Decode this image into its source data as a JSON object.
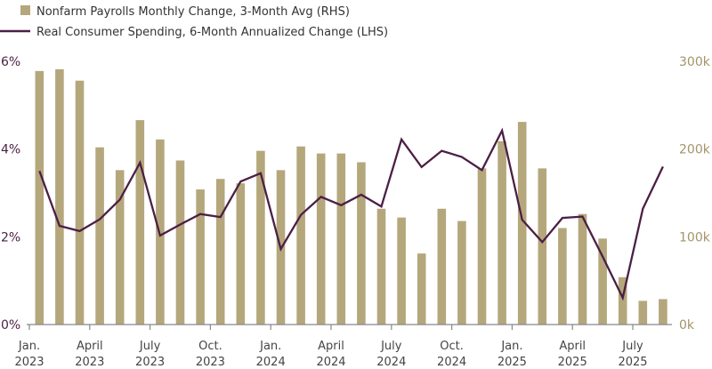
{
  "chart_data": {
    "type": "bar+line",
    "title": "",
    "legend": {
      "placement": "top-left",
      "entries": [
        {
          "label": "Nonfarm Payrolls Monthly Change, 3-Month Avg (RHS)",
          "marker": "square"
        },
        {
          "label": "Real Consumer Spending, 6-Month Annualized Change (LHS)",
          "marker": "line"
        }
      ]
    },
    "colors": {
      "bars": "#b5a77c",
      "line": "#4b1f45",
      "axis": "#888888",
      "left_ticks": "#4b1f45",
      "right_ticks": "#a3946a",
      "x_ticks": "#444444"
    },
    "months": [
      "2023-01",
      "2023-02",
      "2023-03",
      "2023-04",
      "2023-05",
      "2023-06",
      "2023-07",
      "2023-08",
      "2023-09",
      "2023-10",
      "2023-11",
      "2023-12",
      "2024-01",
      "2024-02",
      "2024-03",
      "2024-04",
      "2024-05",
      "2024-06",
      "2024-07",
      "2024-08",
      "2024-09",
      "2024-10",
      "2024-11",
      "2024-12",
      "2025-01",
      "2025-02",
      "2025-03",
      "2025-04",
      "2025-05",
      "2025-06",
      "2025-07",
      "2025-08"
    ],
    "series": [
      {
        "name": "Nonfarm Payrolls Monthly Change, 3-Month Avg (RHS)",
        "type": "bar",
        "axis": "right",
        "unit": "thousands",
        "values": [
          289,
          291,
          278,
          202,
          176,
          233,
          211,
          187,
          154,
          166,
          161,
          198,
          176,
          203,
          195,
          195,
          185,
          132,
          122,
          81,
          132,
          118,
          178,
          209,
          231,
          178,
          110,
          126,
          98,
          54,
          27,
          29
        ]
      },
      {
        "name": "Real Consumer Spending, 6-Month Annualized Change (LHS)",
        "type": "line",
        "axis": "left",
        "unit": "%",
        "values": [
          3.5,
          2.25,
          2.13,
          2.4,
          2.85,
          3.69,
          2.03,
          2.28,
          2.52,
          2.45,
          3.26,
          3.45,
          1.72,
          2.5,
          2.91,
          2.72,
          2.96,
          2.69,
          4.22,
          3.59,
          3.96,
          3.82,
          3.52,
          4.42,
          2.39,
          1.88,
          2.43,
          2.46,
          1.55,
          0.61,
          2.64,
          3.6
        ]
      }
    ],
    "left_axis": {
      "range": [
        0,
        6
      ],
      "ticks": [
        "0%",
        "2%",
        "4%",
        "6%"
      ],
      "tick_values": [
        0,
        2,
        4,
        6
      ]
    },
    "right_axis": {
      "range": [
        0,
        300
      ],
      "ticks": [
        "0k",
        "100k",
        "200k",
        "300k"
      ],
      "tick_values": [
        0,
        100,
        200,
        300
      ]
    },
    "x_axis": {
      "ticks": [
        {
          "month": "Jan.",
          "year": "2023"
        },
        {
          "month": "April",
          "year": "2023"
        },
        {
          "month": "July",
          "year": "2023"
        },
        {
          "month": "Oct.",
          "year": "2023"
        },
        {
          "month": "Jan.",
          "year": "2024"
        },
        {
          "month": "April",
          "year": "2024"
        },
        {
          "month": "July",
          "year": "2024"
        },
        {
          "month": "Oct.",
          "year": "2024"
        },
        {
          "month": "Jan.",
          "year": "2025"
        },
        {
          "month": "April",
          "year": "2025"
        },
        {
          "month": "July",
          "year": "2025"
        }
      ]
    },
    "grid": false
  }
}
